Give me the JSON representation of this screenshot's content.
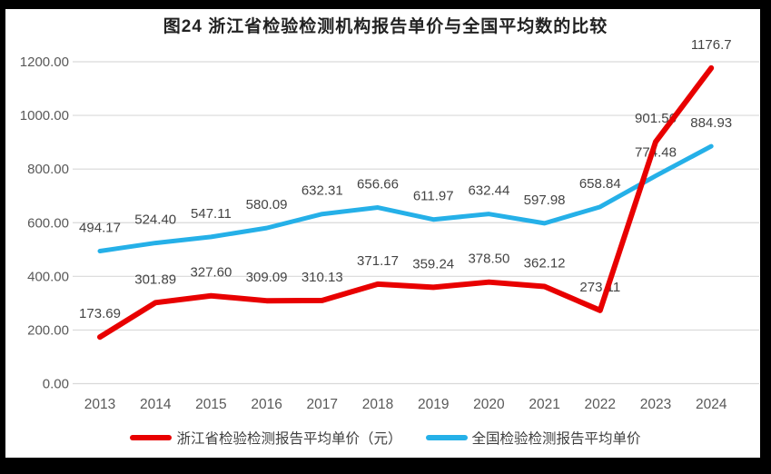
{
  "title": "图24  浙江省检验检测机构报告单价与全国平均数的比较",
  "chart_data": {
    "type": "line",
    "title": "图24  浙江省检验检测机构报告单价与全国平均数的比较",
    "categories": [
      "2013",
      "2014",
      "2015",
      "2016",
      "2017",
      "2018",
      "2019",
      "2020",
      "2021",
      "2022",
      "2023",
      "2024"
    ],
    "series": [
      {
        "name": "浙江省检验检测报告平均单价（元）",
        "color": "#e80000",
        "stroke_width": 6,
        "values": [
          173.69,
          301.89,
          327.6,
          309.09,
          310.13,
          371.17,
          359.24,
          378.5,
          362.12,
          273.11,
          901.56,
          1176.7
        ],
        "point_labels": [
          "173.69",
          "301.89",
          "327.60",
          "309.09",
          "310.13",
          "371.17",
          "359.24",
          "378.50",
          "362.12",
          "273.11",
          "901.56",
          "1176.7"
        ]
      },
      {
        "name": "全国检验检测报告平均单价",
        "color": "#25b0e8",
        "stroke_width": 5,
        "values": [
          494.17,
          524.4,
          547.11,
          580.09,
          632.31,
          656.66,
          611.97,
          632.44,
          597.98,
          658.84,
          774.48,
          884.93
        ],
        "point_labels": [
          "494.17",
          "524.40",
          "547.11",
          "580.09",
          "632.31",
          "656.66",
          "611.97",
          "632.44",
          "597.98",
          "658.84",
          "774.48",
          "884.93"
        ]
      }
    ],
    "ylim": [
      0,
      1200
    ],
    "ytick_labels": [
      "0.00",
      "200.00",
      "400.00",
      "600.00",
      "800.00",
      "1000.00",
      "1200.00"
    ],
    "grid": true,
    "legend_position": "bottom",
    "gridline_color": "#d9d9d9",
    "axis_label_color": "#595959",
    "data_label_color": "#444444",
    "background_color": "#ffffff",
    "frame_color": "#000000"
  }
}
